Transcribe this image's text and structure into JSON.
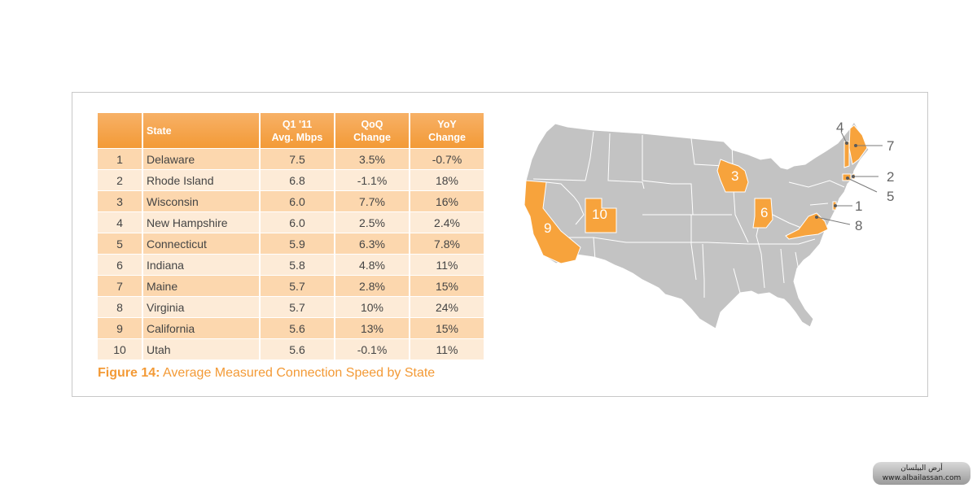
{
  "chart_data": {
    "type": "table",
    "title_prefix": "Figure 14:",
    "title": "Average Measured Connection Speed by State",
    "columns": [
      {
        "label": "",
        "label2": ""
      },
      {
        "label": "State",
        "label2": ""
      },
      {
        "label": "Q1 '11",
        "label2": "Avg. Mbps"
      },
      {
        "label": "QoQ",
        "label2": "Change"
      },
      {
        "label": "YoY",
        "label2": "Change"
      }
    ],
    "rows": [
      {
        "rank": "1",
        "state": "Delaware",
        "avg_mbps": "7.5",
        "qoq": "3.5%",
        "yoy": "-0.7%"
      },
      {
        "rank": "2",
        "state": "Rhode Island",
        "avg_mbps": "6.8",
        "qoq": "-1.1%",
        "yoy": "18%"
      },
      {
        "rank": "3",
        "state": "Wisconsin",
        "avg_mbps": "6.0",
        "qoq": "7.7%",
        "yoy": "16%"
      },
      {
        "rank": "4",
        "state": "New Hampshire",
        "avg_mbps": "6.0",
        "qoq": "2.5%",
        "yoy": "2.4%"
      },
      {
        "rank": "5",
        "state": "Connecticut",
        "avg_mbps": "5.9",
        "qoq": "6.3%",
        "yoy": "7.8%"
      },
      {
        "rank": "6",
        "state": "Indiana",
        "avg_mbps": "5.8",
        "qoq": "4.8%",
        "yoy": "11%"
      },
      {
        "rank": "7",
        "state": "Maine",
        "avg_mbps": "5.7",
        "qoq": "2.8%",
        "yoy": "15%"
      },
      {
        "rank": "8",
        "state": "Virginia",
        "avg_mbps": "5.7",
        "qoq": "10%",
        "yoy": "24%"
      },
      {
        "rank": "9",
        "state": "California",
        "avg_mbps": "5.6",
        "qoq": "13%",
        "yoy": "15%"
      },
      {
        "rank": "10",
        "state": "Utah",
        "avg_mbps": "5.6",
        "qoq": "-0.1%",
        "yoy": "11%"
      }
    ],
    "map_labels": [
      "1",
      "2",
      "3",
      "4",
      "5",
      "6",
      "7",
      "8",
      "9",
      "10"
    ]
  },
  "colors": {
    "header_orange": "#f39a36",
    "row_dark": "#fcd7ae",
    "row_light": "#fdebd7",
    "map_gray": "#c3c3c3",
    "highlight_orange": "#f7a33c"
  },
  "watermark": {
    "line1": "أرض البيلسان",
    "line2": "www.albailassan.com"
  }
}
